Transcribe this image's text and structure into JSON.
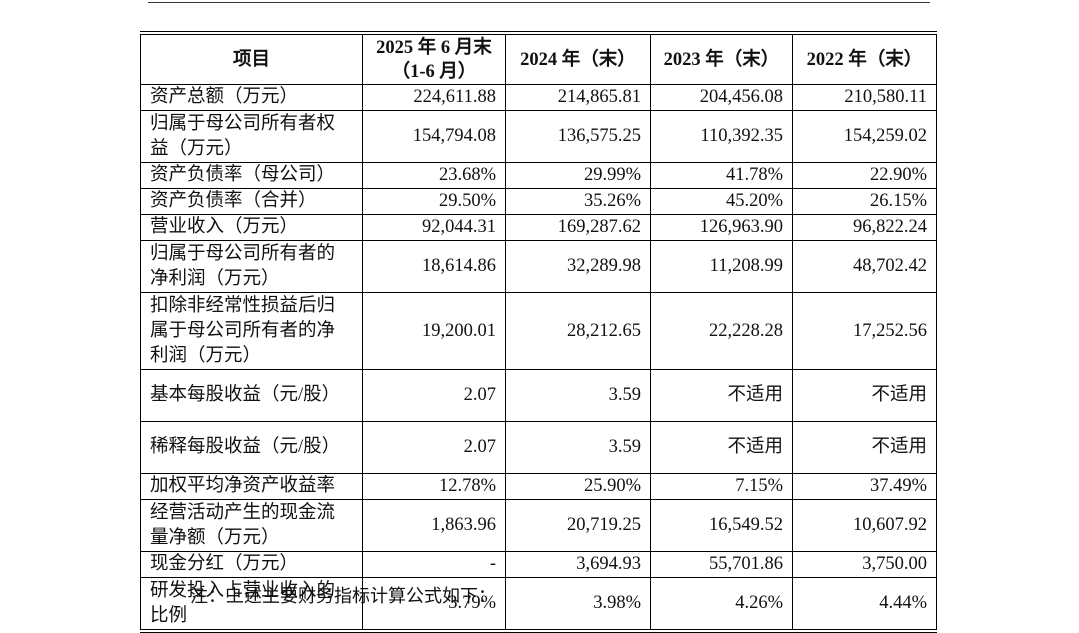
{
  "table": {
    "header": [
      "项目",
      "2025 年 6 月末（1-6 月）",
      "2024 年（末）",
      "2023 年（末）",
      "2022 年（末）"
    ],
    "rows": [
      [
        "资产总额（万元）",
        "224,611.88",
        "214,865.81",
        "204,456.08",
        "210,580.11"
      ],
      [
        "归属于母公司所有者权益（万元）",
        "154,794.08",
        "136,575.25",
        "110,392.35",
        "154,259.02"
      ],
      [
        "资产负债率（母公司）",
        "23.68%",
        "29.99%",
        "41.78%",
        "22.90%"
      ],
      [
        "资产负债率（合并）",
        "29.50%",
        "35.26%",
        "45.20%",
        "26.15%"
      ],
      [
        "营业收入（万元）",
        "92,044.31",
        "169,287.62",
        "126,963.90",
        "96,822.24"
      ],
      [
        "归属于母公司所有者的净利润（万元）",
        "18,614.86",
        "32,289.98",
        "11,208.99",
        "48,702.42"
      ],
      [
        "扣除非经常性损益后归属于母公司所有者的净利润（万元）",
        "19,200.01",
        "28,212.65",
        "22,228.28",
        "17,252.56"
      ],
      [
        "基本每股收益（元/股）",
        "2.07",
        "3.59",
        "不适用",
        "不适用"
      ],
      [
        "稀释每股收益（元/股）",
        "2.07",
        "3.59",
        "不适用",
        "不适用"
      ],
      [
        "加权平均净资产收益率",
        "12.78%",
        "25.90%",
        "7.15%",
        "37.49%"
      ],
      [
        "经营活动产生的现金流量净额（万元）",
        "1,863.96",
        "20,719.25",
        "16,549.52",
        "10,607.92"
      ],
      [
        "现金分红（万元）",
        "-",
        "3,694.93",
        "55,701.86",
        "3,750.00"
      ],
      [
        "研发投入占营业收入的比例",
        "3.79%",
        "3.98%",
        "4.26%",
        "4.44%"
      ]
    ]
  },
  "note": "注：上述主要财务指标计算公式如下："
}
